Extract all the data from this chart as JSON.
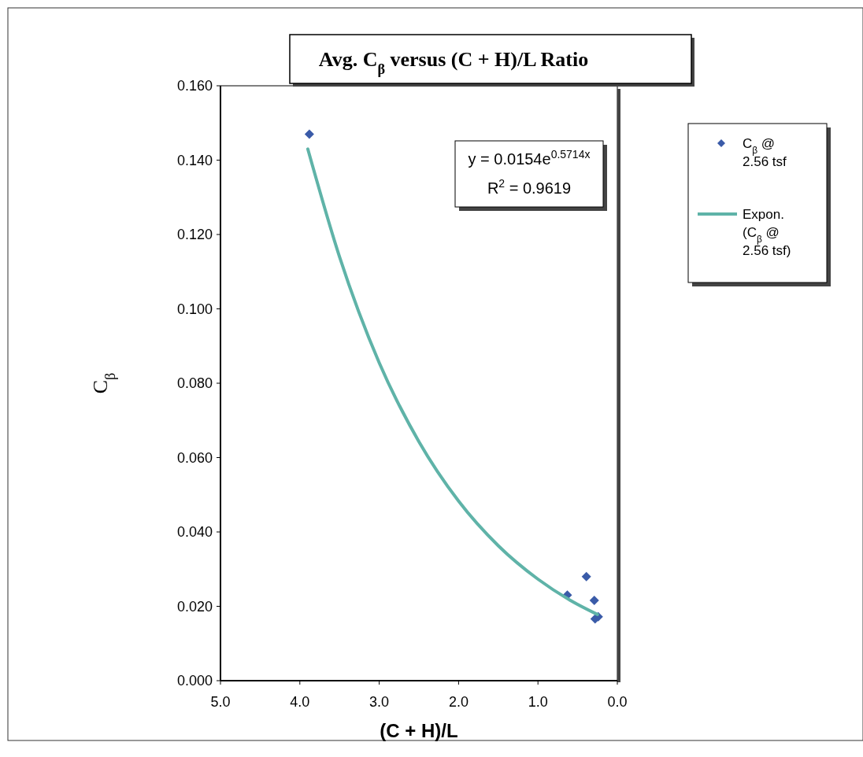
{
  "chart_data": {
    "type": "scatter",
    "title": "Avg. C$_{β}$ versus (C + H)/L Ratio",
    "xlabel": "(C + H)/L",
    "ylabel": "C$_{β}$",
    "xlim": [
      5,
      0
    ],
    "xticks": [
      {
        "value": 5,
        "label": "5.0"
      },
      {
        "value": 4,
        "label": "4.0"
      },
      {
        "value": 3,
        "label": "3.0"
      },
      {
        "value": 2,
        "label": "2.0"
      },
      {
        "value": 1,
        "label": "1.0"
      },
      {
        "value": 0,
        "label": "0.0"
      }
    ],
    "ylim": [
      0,
      0.16
    ],
    "yticks": [
      {
        "value": 0,
        "label": "0.000"
      },
      {
        "value": 0.02,
        "label": "0.020"
      },
      {
        "value": 0.04,
        "label": "0.040"
      },
      {
        "value": 0.06,
        "label": "0.060"
      },
      {
        "value": 0.08,
        "label": "0.080"
      },
      {
        "value": 0.1,
        "label": "0.100"
      },
      {
        "value": 0.12,
        "label": "0.120"
      },
      {
        "value": 0.14,
        "label": "0.140"
      },
      {
        "value": 0.16,
        "label": "0.160"
      }
    ],
    "grid": false,
    "legend": "right",
    "series": [
      {
        "name": "C$_{β}$ @ 2.56 tsf",
        "marker": "diamond",
        "color": "#3a5ba8",
        "x": [
          3.88,
          0.63,
          0.39,
          0.29,
          0.28,
          0.24
        ],
        "values": [
          0.147,
          0.023,
          0.028,
          0.0216,
          0.0166,
          0.0172
        ]
      },
      {
        "name": "Expon. (C$_{β}$ @ 2.56 tsf)",
        "type": "line",
        "marker": "none",
        "line_style": "solid",
        "color": "#5fb3a8",
        "x": [
          3.9,
          3.5,
          3.0,
          2.5,
          2.0,
          1.5,
          1.0,
          0.6,
          0.25
        ],
        "values": [
          0.143,
          0.114,
          0.0855,
          0.0643,
          0.0483,
          0.0363,
          0.0273,
          0.0217,
          0.0178
        ]
      }
    ],
    "annotations": [
      "y = 0.0154e$^{0.5714x}$",
      "R$^{2}$ = 0.9619"
    ]
  }
}
